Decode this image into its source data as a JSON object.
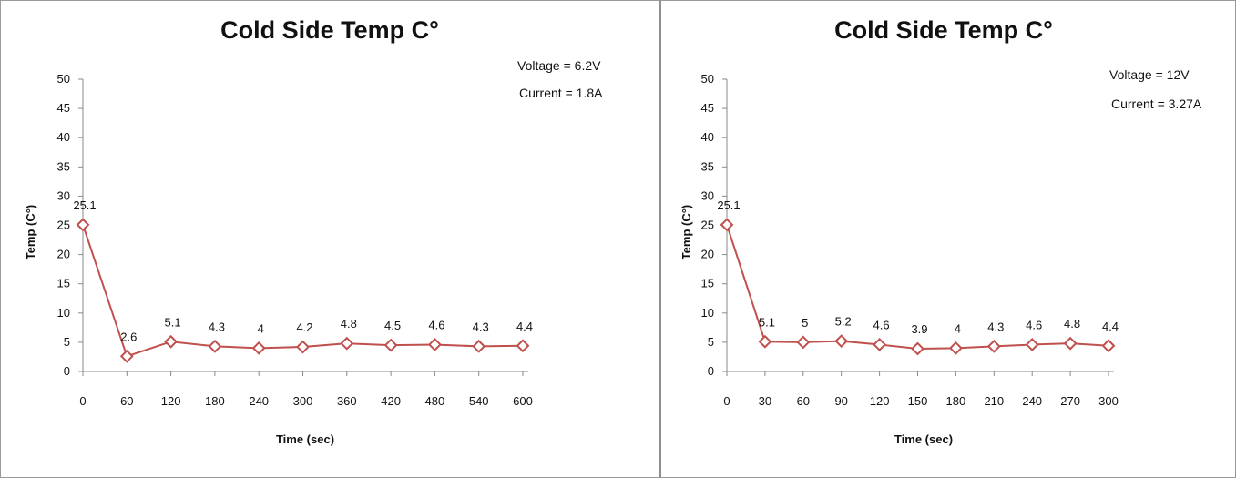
{
  "chart_data": [
    {
      "type": "line",
      "title": "Cold Side Temp C°",
      "annotations": [
        "Voltage = 6.2V",
        "Current = 1.8A"
      ],
      "xlabel": "Time (sec)",
      "ylabel": "Temp (C°)",
      "x": [
        0,
        60,
        120,
        180,
        240,
        300,
        360,
        420,
        480,
        540,
        600
      ],
      "series": [
        {
          "values": [
            25.1,
            2.6,
            5.1,
            4.3,
            4,
            4.2,
            4.8,
            4.5,
            4.6,
            4.3,
            4.4
          ],
          "labels": [
            "25.1",
            "2.6",
            "5.1",
            "4.3",
            "4",
            "4.2",
            "4.8",
            "4.5",
            "4.6",
            "4.3",
            "4.4"
          ]
        }
      ],
      "ylim": [
        0,
        50
      ],
      "yticks": [
        "0",
        "5",
        "10",
        "15",
        "20",
        "25",
        "30",
        "35",
        "40",
        "45",
        "50"
      ],
      "grid": false,
      "color": "#c0504d"
    },
    {
      "type": "line",
      "title": "Cold Side Temp C°",
      "annotations": [
        "Voltage = 12V",
        "Current = 3.27A"
      ],
      "xlabel": "Time (sec)",
      "ylabel": "Temp (C°)",
      "x": [
        0,
        30,
        60,
        90,
        120,
        150,
        180,
        210,
        240,
        270,
        300
      ],
      "series": [
        {
          "values": [
            25.1,
            5.1,
            5,
            5.2,
            4.6,
            3.9,
            4,
            4.3,
            4.6,
            4.8,
            4.4
          ],
          "labels": [
            "25.1",
            "5.1",
            "5",
            "5.2",
            "4.6",
            "3.9",
            "4",
            "4.3",
            "4.6",
            "4.8",
            "4.4"
          ]
        }
      ],
      "ylim": [
        0,
        50
      ],
      "yticks": [
        "0",
        "5",
        "10",
        "15",
        "20",
        "25",
        "30",
        "35",
        "40",
        "45",
        "50"
      ],
      "grid": false,
      "color": "#c0504d"
    }
  ]
}
